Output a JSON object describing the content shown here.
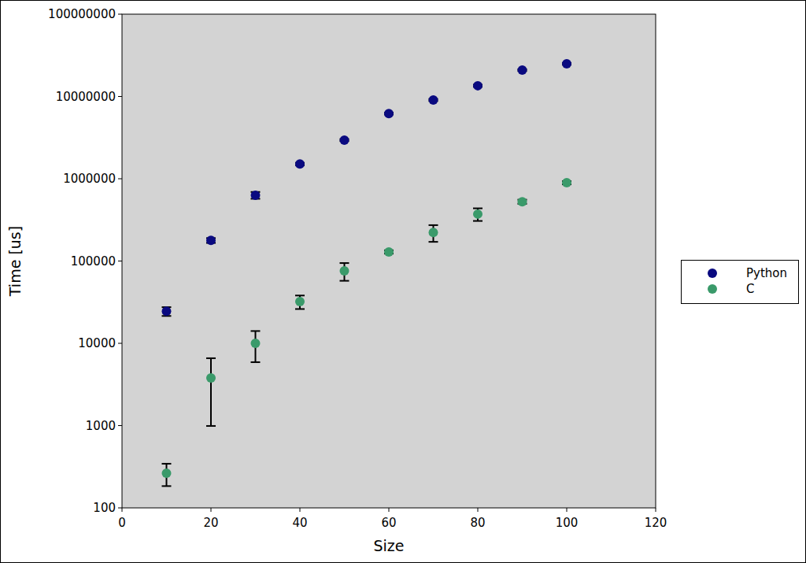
{
  "chart_data": {
    "type": "scatter",
    "x_label": "Size",
    "y_label": "Time [us]",
    "xlim": [
      0,
      120
    ],
    "xticks": [
      0,
      20,
      40,
      60,
      80,
      100,
      120
    ],
    "ylim": [
      100,
      100000000
    ],
    "yticks": [
      100,
      1000,
      10000,
      100000,
      1000000,
      10000000,
      100000000
    ],
    "log": "y",
    "grid": false,
    "legend": "right",
    "marker": "circle",
    "x": [
      10,
      20,
      30,
      40,
      50,
      60,
      70,
      80,
      90,
      100
    ],
    "series": [
      {
        "name": "Python",
        "color": "#0a0a80",
        "values": [
          24500,
          178000,
          631000,
          1510000,
          2950000,
          6200000,
          9060000,
          13500000,
          20900000,
          24900000
        ],
        "errors": [
          3000,
          12000,
          60000,
          50000,
          80000,
          150000,
          250000,
          400000,
          500000,
          600000
        ]
      },
      {
        "name": "C",
        "color": "#3a9a6a",
        "values": [
          264,
          3790,
          10000,
          32100,
          76000,
          129000,
          222000,
          372000,
          526000,
          895000
        ],
        "errors": [
          80,
          2800,
          4100,
          6000,
          18500,
          6000,
          51000,
          65000,
          30000,
          40000
        ]
      }
    ]
  }
}
